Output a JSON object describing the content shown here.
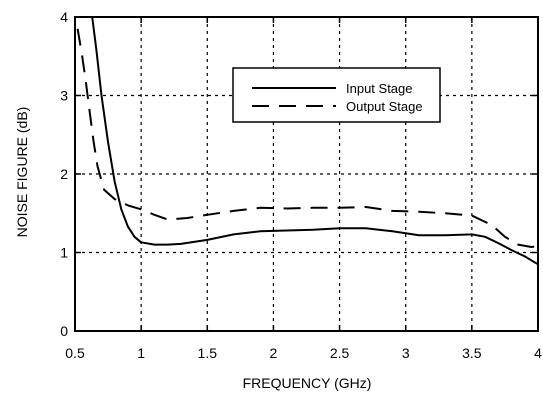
{
  "chart_data": {
    "type": "line",
    "title": "",
    "xlabel": "FREQUENCY (GHz)",
    "ylabel": "NOISE FIGURE (dB)",
    "xlim": [
      0.5,
      4
    ],
    "ylim": [
      0,
      4
    ],
    "xticks": [
      "0.5",
      "1",
      "1.5",
      "2",
      "2.5",
      "3",
      "3.5",
      "4"
    ],
    "yticks": [
      "0",
      "1",
      "2",
      "3",
      "4"
    ],
    "grid": true,
    "legend_position": "top-right",
    "series": [
      {
        "name": "Input Stage",
        "style": "solid",
        "x": [
          0.63,
          0.66,
          0.7,
          0.75,
          0.8,
          0.85,
          0.9,
          0.95,
          1.0,
          1.1,
          1.2,
          1.3,
          1.5,
          1.7,
          1.9,
          2.1,
          2.3,
          2.5,
          2.7,
          2.9,
          3.1,
          3.3,
          3.5,
          3.6,
          3.7,
          3.8,
          3.9,
          4.0
        ],
        "y": [
          4.0,
          3.6,
          3.0,
          2.4,
          1.9,
          1.55,
          1.33,
          1.2,
          1.13,
          1.1,
          1.1,
          1.11,
          1.16,
          1.23,
          1.27,
          1.28,
          1.29,
          1.31,
          1.31,
          1.27,
          1.22,
          1.22,
          1.23,
          1.2,
          1.12,
          1.03,
          0.95,
          0.85
        ]
      },
      {
        "name": "Output Stage",
        "style": "dashed",
        "x": [
          0.52,
          0.55,
          0.58,
          0.61,
          0.64,
          0.67,
          0.72,
          0.8,
          0.9,
          1.0,
          1.1,
          1.2,
          1.35,
          1.5,
          1.7,
          1.9,
          2.1,
          2.3,
          2.5,
          2.7,
          2.9,
          3.1,
          3.3,
          3.5,
          3.65,
          3.75,
          3.85,
          3.95,
          4.0
        ],
        "y": [
          3.85,
          3.55,
          3.2,
          2.8,
          2.42,
          2.1,
          1.8,
          1.68,
          1.6,
          1.55,
          1.48,
          1.42,
          1.44,
          1.48,
          1.53,
          1.57,
          1.56,
          1.57,
          1.57,
          1.58,
          1.53,
          1.52,
          1.5,
          1.47,
          1.35,
          1.2,
          1.1,
          1.07,
          1.08
        ]
      }
    ]
  }
}
